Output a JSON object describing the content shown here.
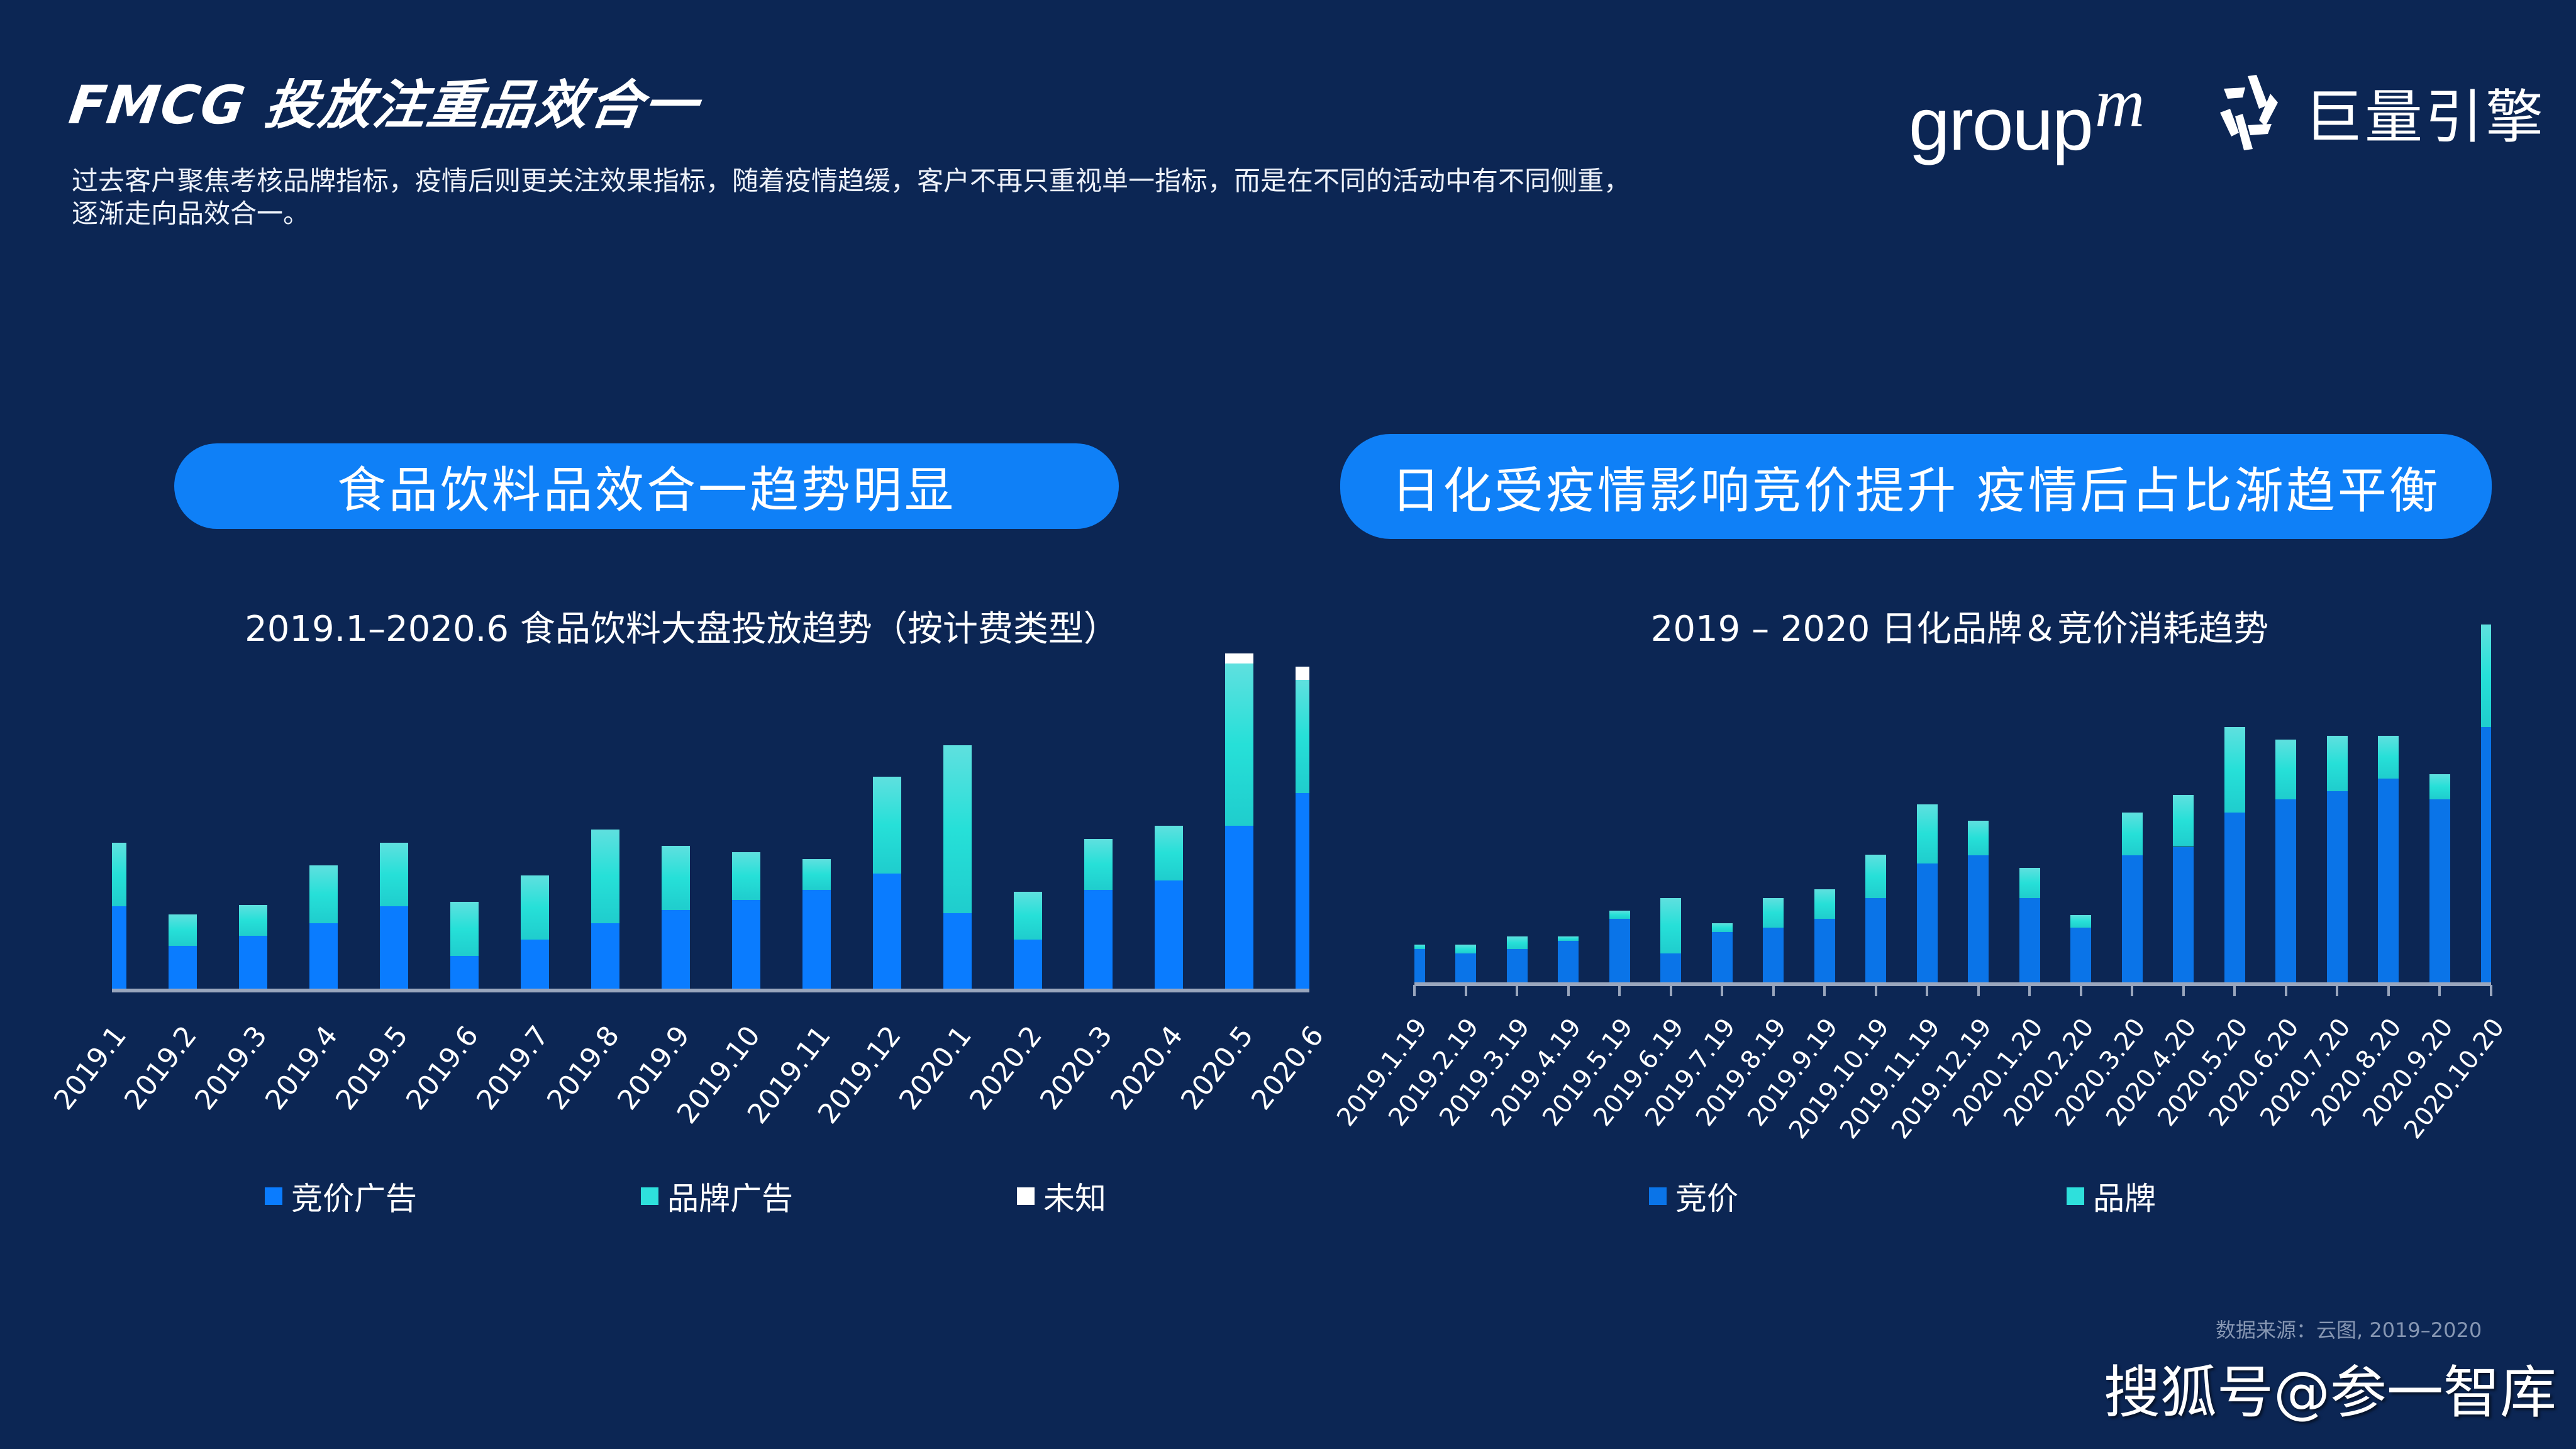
{
  "header": {
    "title": "FMCG 投放注重品效合一",
    "description_line1": "过去客户聚焦考核品牌指标，疫情后则更关注效果指标，随着疫情趋缓，客户不再只重视单一指标，而是在不同的活动中有不同侧重，",
    "description_line2": "逐渐走向品效合一。"
  },
  "logos": {
    "groupm": "group",
    "groupm_m": "m",
    "juliang": "巨量引擎"
  },
  "sections": {
    "left_banner": "食品饮料品效合一趋势明显",
    "right_banner": "日化受疫情影响竞价提升  疫情后占比渐趋平衡"
  },
  "colors": {
    "background": "#0c2654",
    "banner": "#0f80f7",
    "bid_blue": "#0a7cff",
    "brand_teal": "#2ee0dc",
    "unknown_white": "#ffffff",
    "axis": "#9aa6bd"
  },
  "chart_data": [
    {
      "type": "bar",
      "stacked": true,
      "title": "2019.1–2020.6 食品饮料大盘投放趋势（按计费类型）",
      "xlabel": "",
      "ylabel": "",
      "grid": false,
      "legend_position": "bottom",
      "categories": [
        "2019.1",
        "2019.2",
        "2019.3",
        "2019.4",
        "2019.5",
        "2019.6",
        "2019.7",
        "2019.8",
        "2019.9",
        "2019.10",
        "2019.11",
        "2019.12",
        "2020.1",
        "2020.2",
        "2020.3",
        "2020.4",
        "2020.5",
        "2020.6"
      ],
      "series": [
        {
          "name": "竞价广告",
          "color": "#0a7cff",
          "values": [
            50,
            26,
            32,
            40,
            50,
            20,
            30,
            40,
            48,
            54,
            60,
            70,
            46,
            30,
            60,
            66,
            99,
            119
          ]
        },
        {
          "name": "品牌广告",
          "color": "#2ee0dc",
          "values": [
            39,
            19,
            19,
            35,
            39,
            33,
            39,
            57,
            39,
            29,
            19,
            59,
            102,
            29,
            31,
            33,
            99,
            69
          ]
        },
        {
          "name": "未知",
          "color": "#ffffff",
          "values": [
            0,
            0,
            0,
            0,
            0,
            0,
            0,
            0,
            0,
            0,
            0,
            0,
            0,
            0,
            0,
            0,
            6,
            8
          ]
        }
      ]
    },
    {
      "type": "bar",
      "stacked": true,
      "title": "2019 – 2020 日化品牌＆竞价消耗趋势",
      "xlabel": "",
      "ylabel": "",
      "grid": false,
      "legend_position": "bottom",
      "categories": [
        "2019.1.19",
        "2019.2.19",
        "2019.3.19",
        "2019.4.19",
        "2019.5.19",
        "2019.6.19",
        "2019.7.19",
        "2019.8.19",
        "2019.9.19",
        "2019.10.19",
        "2019.11.19",
        "2019.12.19",
        "2020.1.20",
        "2020.2.20",
        "2020.3.20",
        "2020.4.20",
        "2020.5.20",
        "2020.6.20",
        "2020.7.20",
        "2020.8.20",
        "2020.9.20",
        "2020.10.20"
      ],
      "series": [
        {
          "name": "竞价",
          "color": "#0a74e8",
          "values": [
            20.4,
            17.7,
            20.4,
            25.4,
            38.8,
            17.7,
            30.6,
            33.3,
            38.8,
            51.3,
            72.5,
            77.5,
            51.3,
            33.3,
            77.5,
            82.5,
            103.3,
            111.3,
            116.3,
            124.2,
            111.3,
            155.4
          ]
        },
        {
          "name": "品牌",
          "color": "#2ee0dc",
          "values": [
            2.5,
            5.2,
            7.5,
            2.5,
            5,
            33.5,
            5.2,
            17.9,
            17.9,
            26.3,
            36,
            20.8,
            18.3,
            7.5,
            25.8,
            31.5,
            52.1,
            36.5,
            33.8,
            25.8,
            15.6,
            62.3
          ]
        }
      ]
    }
  ],
  "footer": {
    "source": "数据来源：云图, 2019–2020",
    "watermark": "搜狐号@参一智库"
  }
}
